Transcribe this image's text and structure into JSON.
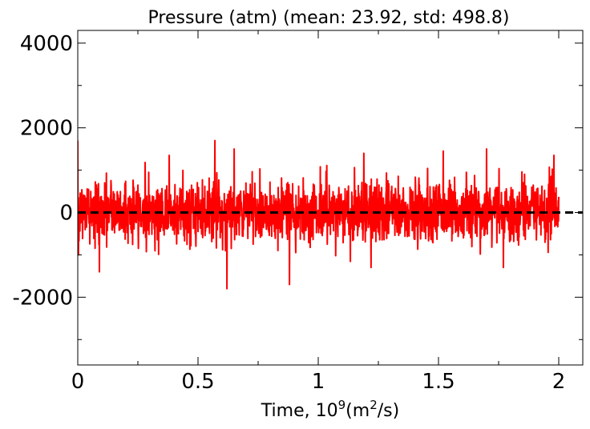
{
  "chart_data": {
    "type": "line",
    "title": "Pressure (atm) (mean: 23.92, std: 498.8)",
    "xlabel": {
      "prefix": "Time, 10",
      "exp1": "9",
      "mid": "(m",
      "exp2": "2",
      "suffix": "/s)"
    },
    "ylabel": "",
    "xlim": [
      0,
      2.1
    ],
    "ylim": [
      -3600,
      4300
    ],
    "x_ticks": [
      {
        "value": 0,
        "label": "0"
      },
      {
        "value": 0.5,
        "label": "0.5"
      },
      {
        "value": 1,
        "label": "1"
      },
      {
        "value": 1.5,
        "label": "1.5"
      },
      {
        "value": 2,
        "label": "2"
      }
    ],
    "x_minor_ticks": [
      0.25,
      0.75,
      1.25,
      1.75
    ],
    "y_ticks": [
      {
        "value": -2000,
        "label": "-2000"
      },
      {
        "value": 0,
        "label": "0"
      },
      {
        "value": 2000,
        "label": "2000"
      },
      {
        "value": 4000,
        "label": "4000"
      }
    ],
    "y_minor_ticks": [
      -3000,
      -1000,
      1000,
      3000
    ],
    "reference_line": {
      "y": 0,
      "style": "dashed",
      "color": "#000000"
    },
    "grid": false,
    "series": [
      {
        "color": "#ff0000",
        "x_range": [
          0,
          2
        ],
        "n_points": 2000,
        "mean": 23.92,
        "std": 498.8,
        "notable_points": [
          {
            "x": 0.0,
            "y": 1700
          },
          {
            "x": 0.003,
            "y": -1000
          },
          {
            "x": 0.09,
            "y": -1400
          },
          {
            "x": 0.38,
            "y": 1350
          },
          {
            "x": 0.57,
            "y": 1700
          },
          {
            "x": 0.62,
            "y": -1800
          },
          {
            "x": 0.65,
            "y": 1500
          },
          {
            "x": 0.88,
            "y": -1700
          },
          {
            "x": 1.19,
            "y": 1400
          },
          {
            "x": 1.22,
            "y": -1300
          },
          {
            "x": 1.52,
            "y": 1450
          },
          {
            "x": 1.7,
            "y": 1500
          },
          {
            "x": 1.77,
            "y": -1300
          },
          {
            "x": 1.98,
            "y": 1350
          }
        ]
      }
    ]
  }
}
